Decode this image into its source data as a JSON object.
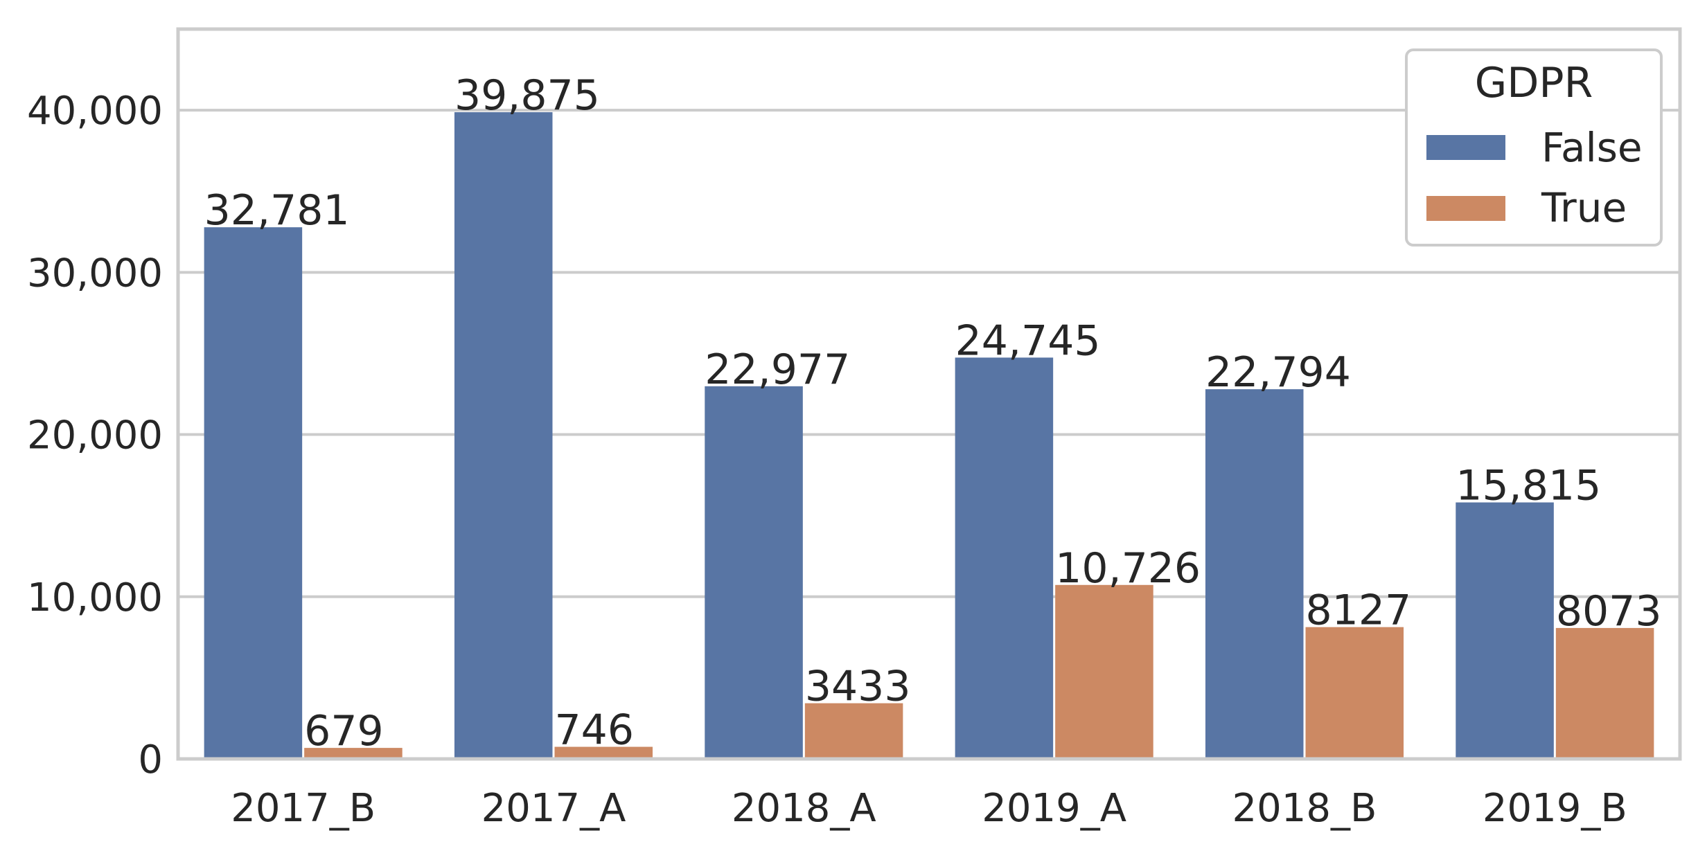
{
  "chart_data": {
    "type": "bar",
    "categories": [
      "2017_B",
      "2017_A",
      "2018_A",
      "2019_A",
      "2018_B",
      "2019_B"
    ],
    "series": [
      {
        "name": "False",
        "color": "#5875a4",
        "values": [
          32781,
          39875,
          22977,
          24745,
          22794,
          15815
        ],
        "labels": [
          "32,781",
          "39,875",
          "22,977",
          "24,745",
          "22,794",
          "15,815"
        ]
      },
      {
        "name": "True",
        "color": "#cc8963",
        "values": [
          679,
          746,
          3433,
          10726,
          8127,
          8073
        ],
        "labels": [
          "679",
          "746",
          "3433",
          "10,726",
          "8127",
          "8073"
        ]
      }
    ],
    "yticks": [
      0,
      10000,
      20000,
      30000,
      40000
    ],
    "ytick_labels": [
      "0",
      "10,000",
      "20,000",
      "30,000",
      "40,000"
    ],
    "ylim": [
      0,
      45000
    ],
    "xlabel": "",
    "ylabel": "",
    "title": "",
    "legend": {
      "title": "GDPR",
      "position": "top-right"
    },
    "grid": "horizontal"
  }
}
